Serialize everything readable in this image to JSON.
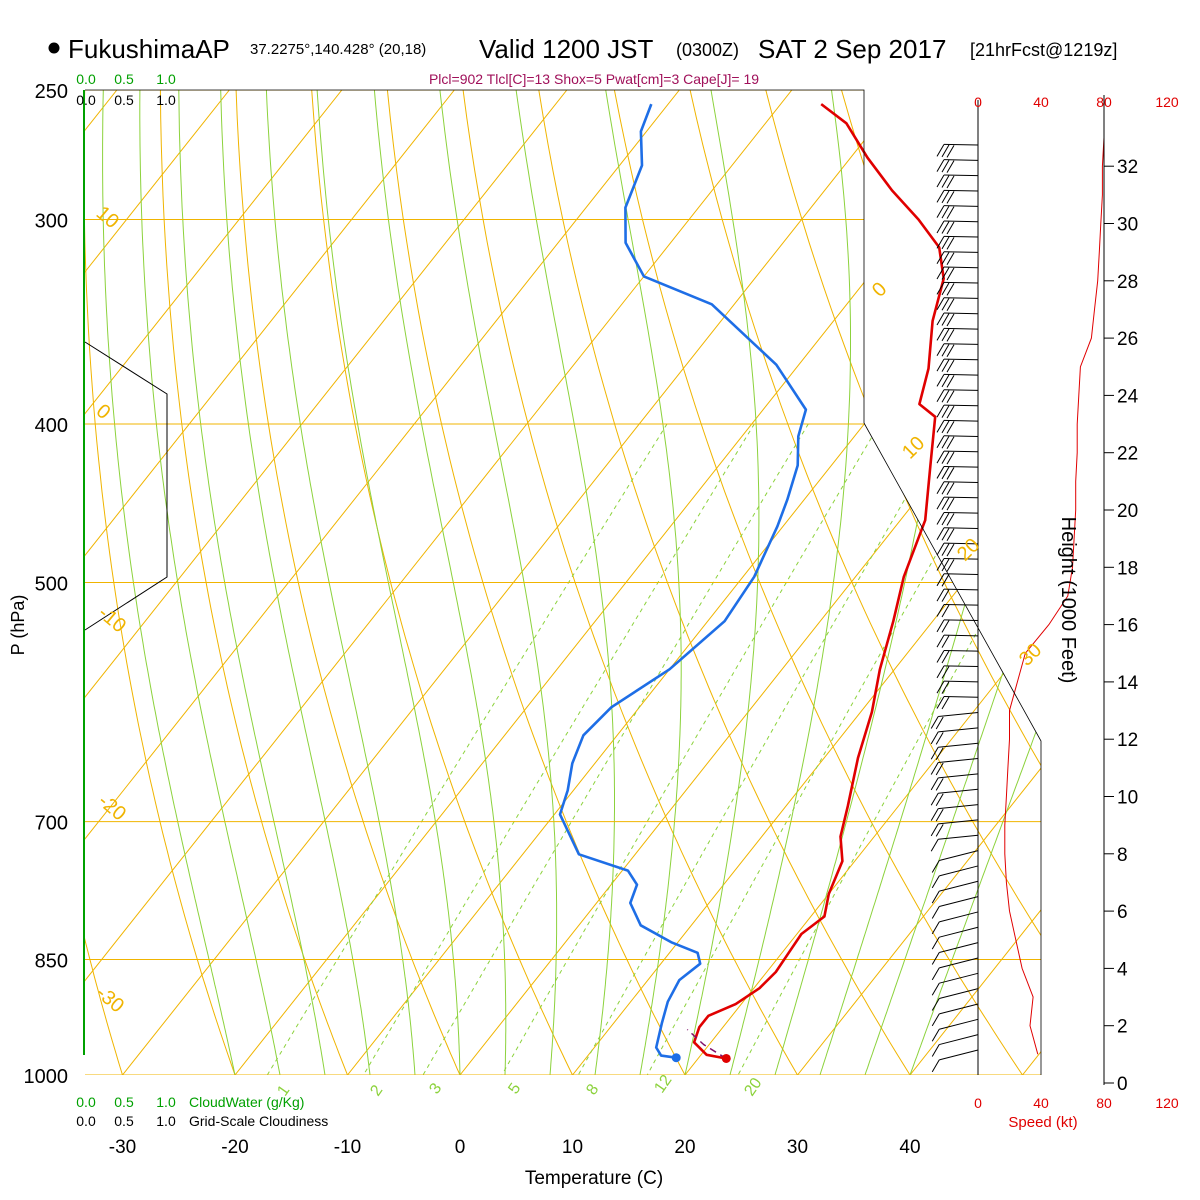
{
  "header": {
    "station": "FukushimaAP",
    "location": "37.2275°,140.428° (20,18)",
    "valid": "Valid 1200 JST",
    "zulu": "(0300Z)",
    "date": "SAT 2 Sep 2017",
    "forecast": "[21hrFcst@1219z]",
    "indices": "Plcl=902 Tlcl[C]=13 Shox=5 Pwat[cm]=3 Cape[J]= 19"
  },
  "axes": {
    "xlabel": "Temperature (C)",
    "ylabel": "P (hPa)",
    "height_label": "Height (1000 Feet)",
    "speed_label": "Speed (kt)",
    "cloudwater_label": "CloudWater (g/Kg)",
    "cloudiness_label": "Grid-Scale Cloudiness"
  },
  "colors": {
    "temperature": "#e00000",
    "dewpoint": "#1e6ee6",
    "isotherm_isobar": "#f0b400",
    "dry_adiabat": "#8cc83c",
    "moist_adiabat": "#8cd23c",
    "cloudwater": "#00a000",
    "wind_speed": "#e00000"
  },
  "chart_data": {
    "type": "line",
    "title": "FukushimaAP Valid 1200 JST (0300Z) SAT 2 Sep 2017",
    "xlabel": "Temperature (C)",
    "ylabel": "P (hPa)",
    "x_ticks": [
      "-30",
      "-20",
      "-10",
      "0",
      "10",
      "20",
      "30",
      "40"
    ],
    "p_ticks": [
      "250",
      "300",
      "400",
      "500",
      "700",
      "850",
      "1000"
    ],
    "p_tick_values": [
      250,
      300,
      400,
      500,
      700,
      850,
      1000
    ],
    "height_ticks": [
      "0",
      "2",
      "4",
      "6",
      "8",
      "10",
      "12",
      "14",
      "16",
      "18",
      "20",
      "22",
      "24",
      "26",
      "28",
      "30",
      "32"
    ],
    "speed_ticks": [
      "0",
      "40",
      "80",
      "120"
    ],
    "cloudwater_ticks": [
      "0.0",
      "0.5",
      "1.0"
    ],
    "cloudiness_ticks": [
      "0.0",
      "0.5",
      "1.0"
    ],
    "isotherm_labels": [
      "10",
      "0",
      "-10",
      "-20",
      "-30",
      "0",
      "10",
      "20",
      "30"
    ],
    "mixing_ratio_labels": [
      "1",
      "2",
      "3",
      "5",
      "8",
      "12",
      "20"
    ],
    "series": [
      {
        "name": "Temperature",
        "points": [
          [
            22.5,
            977
          ],
          [
            20.5,
            972
          ],
          [
            18.5,
            955
          ],
          [
            17.9,
            935
          ],
          [
            17.9,
            920
          ],
          [
            19.5,
            905
          ],
          [
            20.5,
            885
          ],
          [
            20.8,
            865
          ],
          [
            20.6,
            842
          ],
          [
            20.4,
            820
          ],
          [
            21.2,
            800
          ],
          [
            20.0,
            775
          ],
          [
            18.9,
            740
          ],
          [
            17.0,
            715
          ],
          [
            15.5,
            685
          ],
          [
            13.0,
            640
          ],
          [
            11.0,
            600
          ],
          [
            8.7,
            565
          ],
          [
            6.5,
            528
          ],
          [
            4.3,
            496
          ],
          [
            2.2,
            458
          ],
          [
            -1.2,
            424
          ],
          [
            -4.2,
            396
          ],
          [
            -6.5,
            389
          ],
          [
            -8.2,
            370
          ],
          [
            -11.2,
            346
          ],
          [
            -13.2,
            326
          ],
          [
            -15.8,
            312
          ],
          [
            -19.6,
            300
          ],
          [
            -24.0,
            288
          ],
          [
            -28.5,
            275
          ],
          [
            -32.8,
            262
          ],
          [
            -36.4,
            255
          ]
        ]
      },
      {
        "name": "Dewpoint",
        "points": [
          [
            18.0,
            976
          ],
          [
            16.5,
            973
          ],
          [
            15.5,
            962
          ],
          [
            14.3,
            930
          ],
          [
            13.3,
            902
          ],
          [
            12.8,
            875
          ],
          [
            13.5,
            855
          ],
          [
            12.5,
            842
          ],
          [
            9.5,
            830
          ],
          [
            5.5,
            810
          ],
          [
            3.0,
            785
          ],
          [
            2.3,
            765
          ],
          [
            0.5,
            750
          ],
          [
            -5.0,
            733
          ],
          [
            -9.5,
            693
          ],
          [
            -10.5,
            670
          ],
          [
            -12.0,
            645
          ],
          [
            -13.0,
            620
          ],
          [
            -12.5,
            596
          ],
          [
            -10.0,
            565
          ],
          [
            -8.5,
            528
          ],
          [
            -9.0,
            496
          ],
          [
            -10.5,
            462
          ],
          [
            -11.5,
            445
          ],
          [
            -13.0,
            424
          ],
          [
            -15.0,
            407
          ],
          [
            -16.2,
            392
          ],
          [
            -22.0,
            368
          ],
          [
            -32.0,
            338
          ],
          [
            -40.0,
            325
          ],
          [
            -44.0,
            310
          ],
          [
            -46.5,
            295
          ],
          [
            -48.0,
            278
          ],
          [
            -50.5,
            265
          ],
          [
            -51.5,
            255
          ]
        ]
      },
      {
        "name": "Parcel",
        "points": [
          [
            22.5,
            977
          ],
          [
            19.5,
            958
          ],
          [
            17.0,
            938
          ]
        ]
      }
    ],
    "wind_speed_profile": {
      "height_kft": [
        1,
        2,
        3,
        4,
        5,
        6,
        7,
        8,
        9,
        10,
        11,
        12,
        13,
        14,
        15,
        16,
        17,
        18,
        19,
        20,
        21,
        22,
        23,
        24,
        25,
        26,
        27,
        28,
        29,
        30,
        31,
        32,
        33
      ],
      "speed_kt": [
        38,
        33,
        35,
        28,
        24,
        20,
        18,
        17,
        17,
        18,
        19,
        20,
        20,
        25,
        30,
        45,
        57,
        60,
        61,
        62,
        62,
        63,
        63,
        64,
        65,
        72,
        74,
        76,
        77,
        78,
        79,
        79,
        80
      ]
    }
  }
}
